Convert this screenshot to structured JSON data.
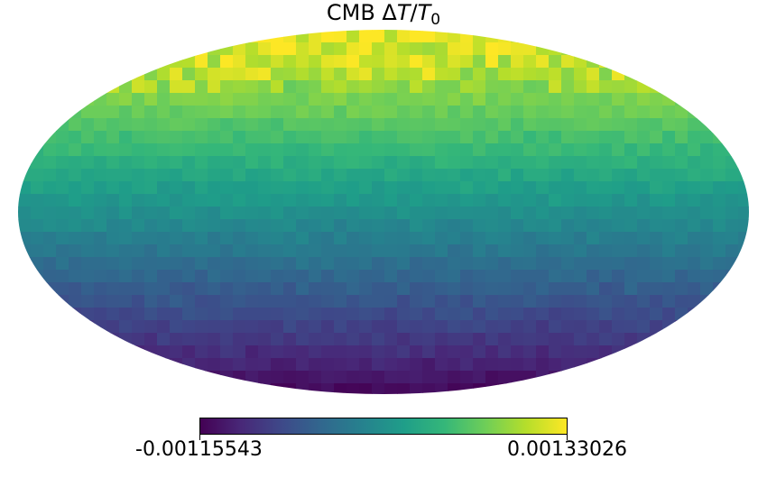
{
  "chart_data": {
    "type": "heatmap",
    "projection": "mollweide",
    "title": "CMB ΔT/T",
    "title_subscript": "0",
    "colormap": "viridis",
    "colormap_stops": [
      "#440154",
      "#482878",
      "#3e4989",
      "#31688e",
      "#26828e",
      "#1f9e89",
      "#35b779",
      "#6ece58",
      "#b5de2b",
      "#fde725"
    ],
    "colorbar": {
      "min": -0.00115543,
      "max": 0.00133026,
      "min_label": "-0.00115543",
      "max_label": "0.00133026"
    },
    "pattern": "dipole gradient: maximum near north pole, minimum near south pole"
  }
}
